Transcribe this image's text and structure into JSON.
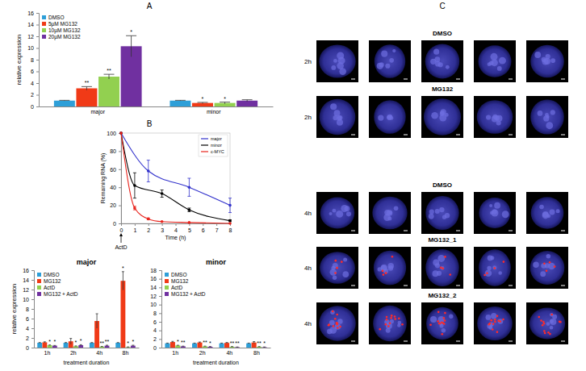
{
  "chart_data": [
    {
      "type": "bar",
      "y_label": "relative expression",
      "categories": [
        "major",
        "minor"
      ],
      "series": [
        {
          "name": "DMSO",
          "color": "#2e9fd8",
          "values": [
            1,
            1
          ],
          "errors": [
            0.05,
            0.05
          ]
        },
        {
          "name": "5µM MG132",
          "color": "#f03a17",
          "values": [
            3.1,
            0.6
          ],
          "errors": [
            0.3,
            0.1
          ]
        },
        {
          "name": "10µM MG132",
          "color": "#92d050",
          "values": [
            5.1,
            0.6
          ],
          "errors": [
            0.4,
            0.15
          ]
        },
        {
          "name": "20µM MG132",
          "color": "#7030a0",
          "values": [
            10.3,
            1.0
          ],
          "errors": [
            1.8,
            0.15
          ]
        }
      ],
      "ylim": [
        0,
        16
      ],
      "yticks": [
        0,
        2,
        4,
        6,
        8,
        10,
        12,
        14,
        16
      ],
      "legend": "top-left",
      "annotations": [
        {
          "category": "major",
          "series": "5µM MG132",
          "text": "**"
        },
        {
          "category": "major",
          "series": "10µM MG132",
          "text": "**"
        },
        {
          "category": "major",
          "series": "20µM MG132",
          "text": "*"
        },
        {
          "category": "minor",
          "series": "5µM MG132",
          "text": "*"
        },
        {
          "category": "minor",
          "series": "10µM MG132",
          "text": "*"
        }
      ]
    },
    {
      "type": "line",
      "x_label": "Time (h)",
      "y_label": "Remaining RNA (%)",
      "series": [
        {
          "name": "major",
          "color": "#3333cc",
          "marker": "circle",
          "x": [
            0,
            2,
            5,
            8
          ],
          "values": [
            100,
            58,
            40,
            20
          ],
          "errors": [
            0,
            12,
            10,
            8
          ]
        },
        {
          "name": "minor",
          "color": "#000000",
          "marker": "circle",
          "x": [
            0,
            1,
            3,
            5,
            8
          ],
          "values": [
            100,
            42,
            33,
            15,
            3
          ],
          "errors": [
            0,
            14,
            4,
            2,
            1
          ]
        },
        {
          "name": "c-MYC",
          "color": "#e8231c",
          "marker": "circle",
          "x": [
            0,
            1,
            2,
            3,
            5,
            8
          ],
          "values": [
            100,
            17,
            5,
            2,
            1,
            0
          ],
          "errors": [
            0,
            2,
            1,
            0,
            0,
            0
          ]
        }
      ],
      "xlim": [
        0,
        8
      ],
      "xticks": [
        0,
        1,
        2,
        3,
        4,
        5,
        6,
        7,
        8
      ],
      "ylim": [
        0,
        100
      ],
      "yticks": [
        0,
        20,
        40,
        60,
        80,
        100
      ],
      "legend": "top-right",
      "annotations": [
        {
          "x": 0,
          "text": "ActD"
        }
      ]
    },
    {
      "type": "bar",
      "title": "major",
      "y_label": "relative expression",
      "x_label": "treatment duration",
      "categories": [
        "1h",
        "2h",
        "4h",
        "8h"
      ],
      "series": [
        {
          "name": "DMSO",
          "color": "#2e9fd8",
          "values": [
            1,
            1,
            1,
            1
          ],
          "errors": [
            0.05,
            0.05,
            0.05,
            0.05
          ]
        },
        {
          "name": "MG132",
          "color": "#f03a17",
          "values": [
            1.1,
            1.3,
            5.5,
            13.8
          ],
          "errors": [
            0.1,
            0.6,
            1.5,
            1.9
          ]
        },
        {
          "name": "ActD",
          "color": "#92d050",
          "values": [
            0.5,
            0.3,
            0.2,
            0.1
          ],
          "errors": [
            0.05,
            0.05,
            0.05,
            0.05
          ]
        },
        {
          "name": "MG132 + ActD",
          "color": "#7030a0",
          "values": [
            0.4,
            0.5,
            0.4,
            0.4
          ],
          "errors": [
            0.05,
            0.1,
            0.1,
            0.1
          ]
        }
      ],
      "ylim": [
        0,
        16
      ],
      "yticks": [
        0,
        2,
        4,
        6,
        8,
        10,
        12,
        14,
        16
      ],
      "legend": "top-left",
      "annotations": [
        {
          "category": "1h",
          "series": "ActD",
          "text": "*"
        },
        {
          "category": "1h",
          "series": "MG132 + ActD",
          "text": "*"
        },
        {
          "category": "2h",
          "series": "ActD",
          "text": "*"
        },
        {
          "category": "2h",
          "series": "MG132 + ActD",
          "text": "*"
        },
        {
          "category": "4h",
          "series": "ActD",
          "text": "**"
        },
        {
          "category": "4h",
          "series": "MG132 + ActD",
          "text": "**"
        },
        {
          "category": "8h",
          "series": "MG132",
          "text": "*"
        },
        {
          "category": "8h",
          "series": "ActD",
          "text": "*"
        },
        {
          "category": "8h",
          "series": "MG132 + ActD",
          "text": "*"
        }
      ]
    },
    {
      "type": "bar",
      "title": "minor",
      "x_label": "treatment duration",
      "categories": [
        "1h",
        "2h",
        "4h",
        "8h"
      ],
      "series": [
        {
          "name": "DMSO",
          "color": "#2e9fd8",
          "values": [
            1,
            1,
            1,
            1
          ],
          "errors": [
            0.05,
            0.05,
            0.05,
            0.05
          ]
        },
        {
          "name": "MG132",
          "color": "#f03a17",
          "values": [
            1.3,
            1.2,
            1.1,
            1.2
          ],
          "errors": [
            0.15,
            0.1,
            0.1,
            0.2
          ]
        },
        {
          "name": "ActD",
          "color": "#92d050",
          "values": [
            0.5,
            0.3,
            0.2,
            0.2
          ],
          "errors": [
            0.05,
            0.05,
            0.05,
            0.05
          ]
        },
        {
          "name": "MG132 + ActD",
          "color": "#7030a0",
          "values": [
            0.3,
            0.2,
            0.1,
            0.1
          ],
          "errors": [
            0.05,
            0.05,
            0.05,
            0.05
          ]
        }
      ],
      "ylim": [
        0,
        18
      ],
      "yticks": [
        0,
        2,
        4,
        6,
        8,
        10,
        12,
        14,
        16,
        18
      ],
      "legend": "top-left",
      "annotations": [
        {
          "category": "1h",
          "series": "ActD",
          "text": "*"
        },
        {
          "category": "1h",
          "series": "MG132 + ActD",
          "text": "**"
        },
        {
          "category": "2h",
          "series": "ActD",
          "text": "**"
        },
        {
          "category": "2h",
          "series": "MG132 + ActD",
          "text": "*"
        },
        {
          "category": "4h",
          "series": "ActD",
          "text": "**"
        },
        {
          "category": "4h",
          "series": "MG132 + ActD",
          "text": "**"
        },
        {
          "category": "8h",
          "series": "ActD",
          "text": "**"
        },
        {
          "category": "8h",
          "series": "MG132 + ActD",
          "text": "*"
        }
      ]
    }
  ],
  "panel_labels": [
    "A",
    "B",
    "C"
  ],
  "micrographs": {
    "rows": [
      {
        "title": "DMSO",
        "time": "2h"
      },
      {
        "title": "MG132",
        "time": "2h"
      },
      {
        "title": "DMSO",
        "time": "4h"
      },
      {
        "title": "MG132_1",
        "time": "4h"
      },
      {
        "title": "MG132_2",
        "time": "4h"
      }
    ]
  }
}
